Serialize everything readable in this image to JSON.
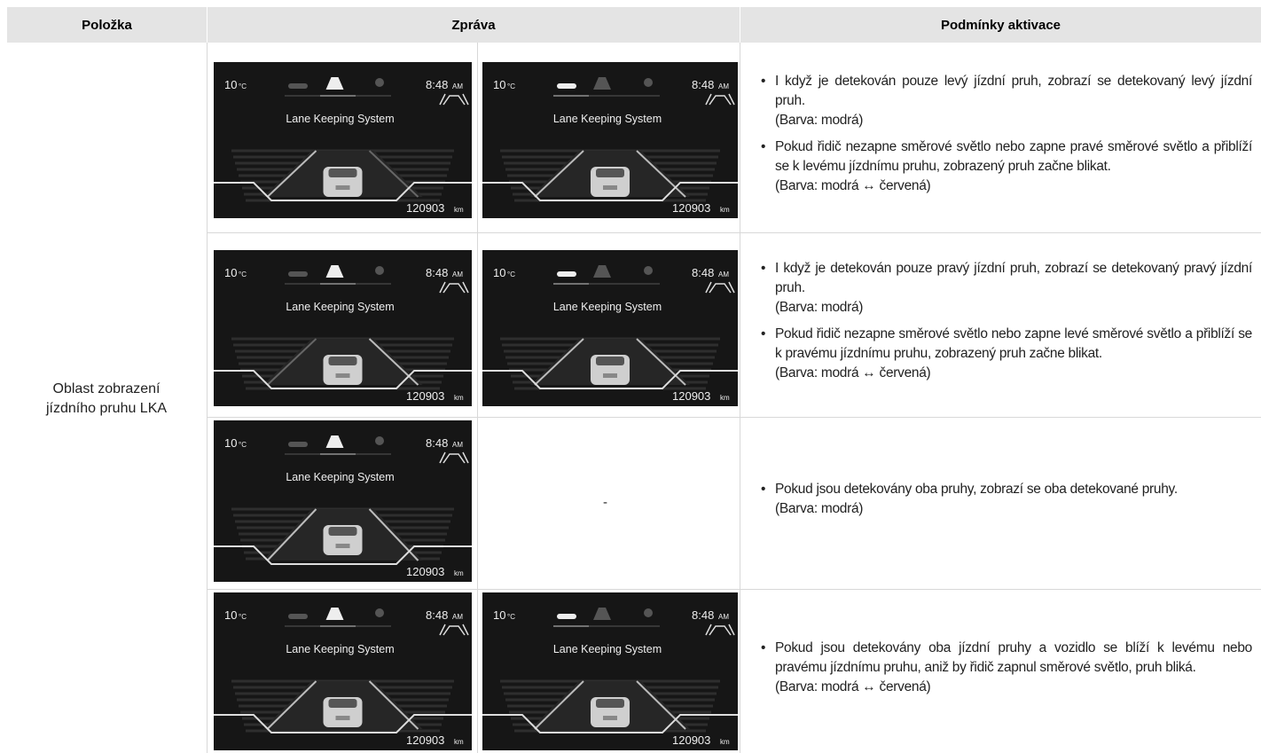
{
  "header": {
    "col1": "Položka",
    "col2": "Zpráva",
    "col3": "Podmínky aktivace"
  },
  "item": "Oblast zobrazení jízdního pruhu LKA",
  "screen": {
    "temp": "10",
    "temp_unit": "°C",
    "time": "8:48",
    "ampm": "AM",
    "title": "Lane Keeping System",
    "odometer": "120903",
    "odo_unit": "km"
  },
  "empty_cell": "-",
  "rows": [
    {
      "conditions": [
        {
          "text": "I když je detekován pouze levý jízdní pruh, zobrazí se detekovaný levý jízdní pruh.",
          "note": "(Barva: modrá)"
        },
        {
          "text": "Pokud řidič nezapne směrové světlo nebo zapne pravé směrové světlo a přiblíží se k levému jízdnímu pruhu, zobrazený pruh začne blikat.",
          "note": "(Barva: modrá ↔ červená)"
        }
      ]
    },
    {
      "conditions": [
        {
          "text": "I když je detekován pouze pravý jízdní pruh, zobrazí se detekovaný pravý jízdní pruh.",
          "note": "(Barva: modrá)"
        },
        {
          "text": "Pokud řidič nezapne směrové světlo nebo zapne levé směrové světlo a přiblíží se k pravému jízdnímu pruhu, zobrazený pruh začne blikat.",
          "note": "(Barva: modrá ↔ červená)"
        }
      ]
    },
    {
      "conditions": [
        {
          "text": "Pokud jsou detekovány oba pruhy, zobrazí se oba detekované pruhy.",
          "note": "(Barva: modrá)"
        }
      ]
    },
    {
      "conditions": [
        {
          "text": "Pokud jsou detekovány oba jízdní pruhy a vozidlo se blíží k levému nebo pravému jízdnímu pruhu, aniž by řidič zapnul směrové světlo, pruh bliká.",
          "note": "(Barva: modrá ↔ červená)"
        }
      ]
    }
  ]
}
